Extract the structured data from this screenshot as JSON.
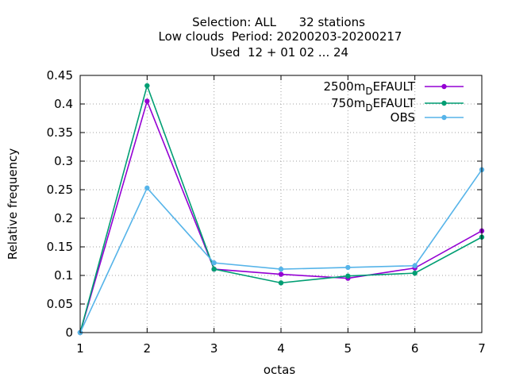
{
  "chart_data": {
    "type": "line",
    "title": [
      "Selection: ALL      32 stations",
      "Low clouds  Period: 20200203-20200217",
      "Used  12 + 01 02 ... 24"
    ],
    "xlabel": "octas",
    "ylabel": "Relative frequency",
    "x": [
      1,
      2,
      3,
      4,
      5,
      6,
      7
    ],
    "xlim": [
      1,
      7
    ],
    "ylim": [
      0,
      0.45
    ],
    "xticks": [
      1,
      2,
      3,
      4,
      5,
      6,
      7
    ],
    "yticks": [
      "0",
      "0.05",
      "0.1",
      "0.15",
      "0.2",
      "0.25",
      "0.3",
      "0.35",
      "0.4",
      "0.45"
    ],
    "grid": true,
    "legend_position": "top-right",
    "series": [
      {
        "name_main": "2500m",
        "name_sub": "D",
        "name_rest": "EFAULT",
        "color": "#9400d3",
        "values": [
          0.0,
          0.405,
          0.111,
          0.102,
          0.095,
          0.113,
          0.178
        ]
      },
      {
        "name_main": "750m",
        "name_sub": "D",
        "name_rest": "EFAULT",
        "color": "#009e73",
        "values": [
          0.0,
          0.432,
          0.111,
          0.087,
          0.099,
          0.104,
          0.167
        ]
      },
      {
        "name_main": "OBS",
        "name_sub": "",
        "name_rest": "",
        "color": "#56b4e9",
        "values": [
          0.0,
          0.253,
          0.122,
          0.111,
          0.114,
          0.117,
          0.285
        ]
      }
    ]
  }
}
